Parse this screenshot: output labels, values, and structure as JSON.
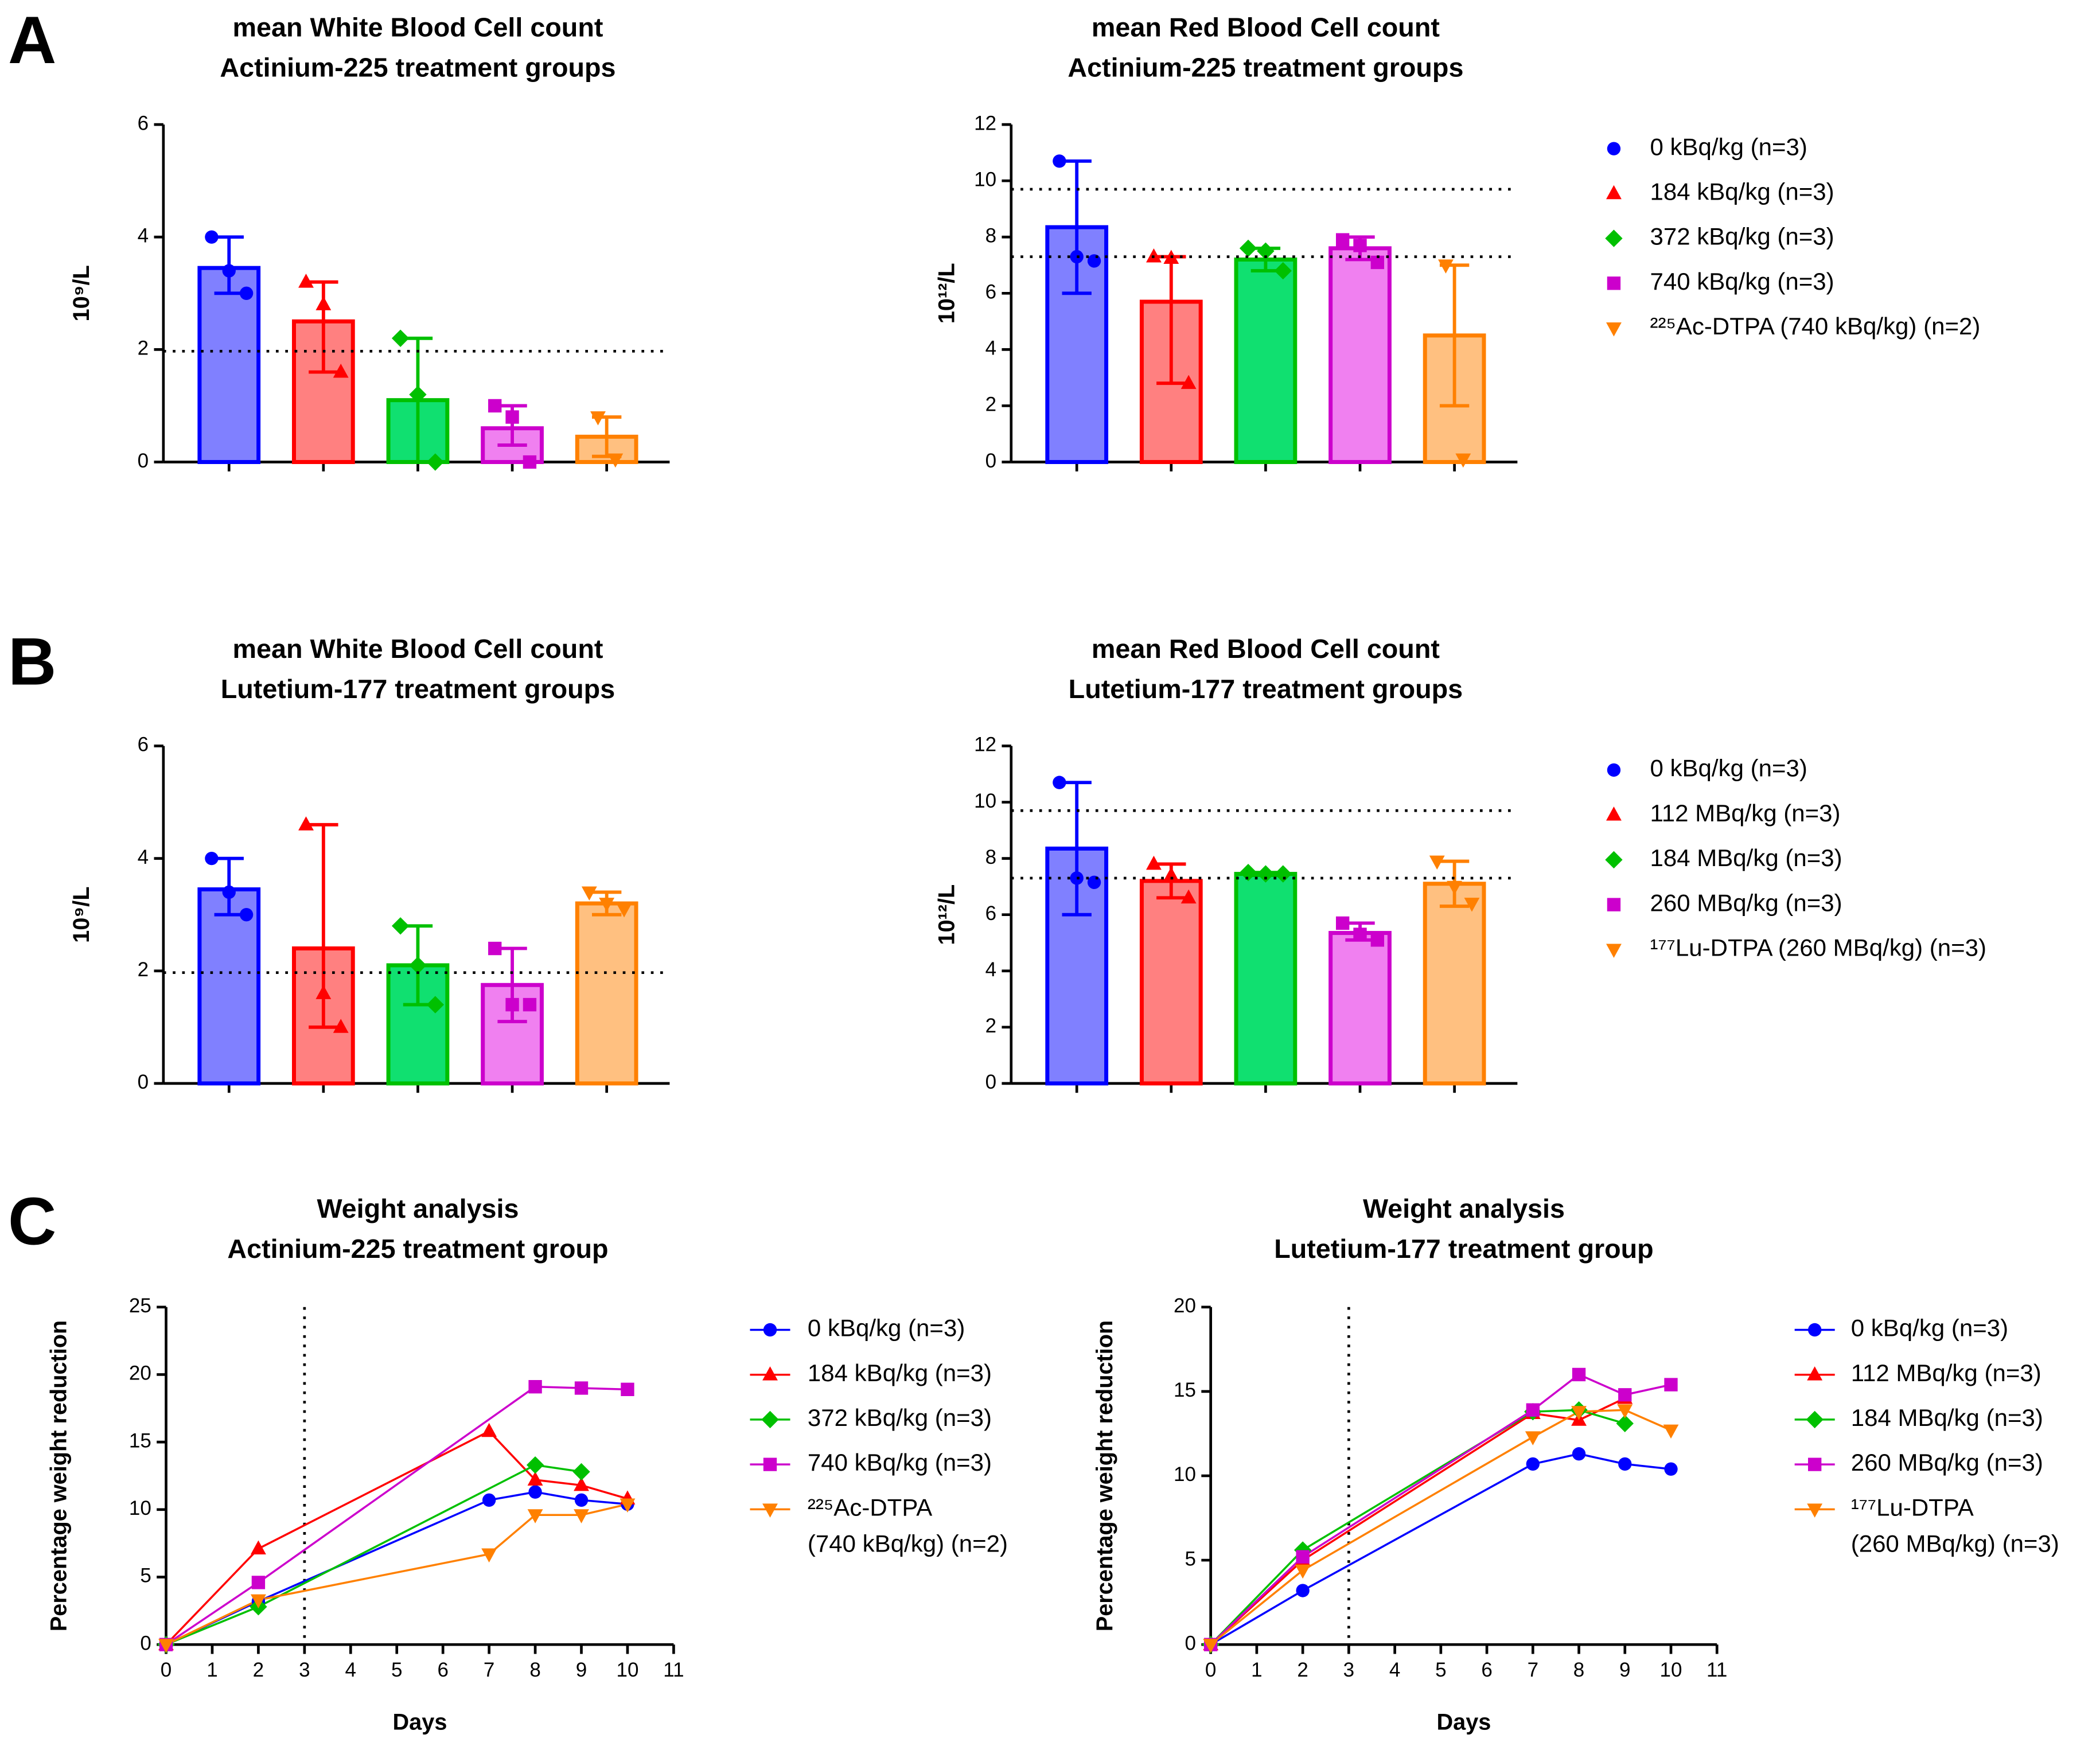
{
  "chart_data": [
    {
      "type": "bar",
      "panel": "A",
      "title": [
        "mean White Blood Cell count",
        "Actinium-225 treatment groups"
      ],
      "ylabel": "10⁹/L",
      "ylim": [
        0,
        6
      ],
      "yticks": [
        0,
        2,
        4,
        6
      ],
      "ref_lines": [
        1.97
      ],
      "series": [
        {
          "color": "#0000ff",
          "fill": "#8080ff",
          "marker": "circle",
          "value": 3.45,
          "error_range": [
            3.0,
            4.0
          ],
          "points": [
            4.0,
            3.4,
            3.0
          ]
        },
        {
          "color": "#ff0000",
          "fill": "#ff8080",
          "marker": "triangle",
          "value": 2.5,
          "error_range": [
            1.6,
            3.2
          ],
          "points": [
            3.2,
            2.8,
            1.6
          ]
        },
        {
          "color": "#00c000",
          "fill": "#10e070",
          "marker": "diamond",
          "value": 1.1,
          "error_range": [
            0.0,
            2.2
          ],
          "points": [
            2.2,
            1.2,
            0.0
          ]
        },
        {
          "color": "#cc00cc",
          "fill": "#f080f0",
          "marker": "square",
          "value": 0.6,
          "error_range": [
            0.3,
            1.0
          ],
          "points": [
            1.0,
            0.8,
            0.0
          ]
        },
        {
          "color": "#ff8000",
          "fill": "#ffc080",
          "marker": "triangle-down",
          "value": 0.45,
          "error_range": [
            0.1,
            0.8
          ],
          "points": [
            0.8,
            0.05
          ]
        }
      ]
    },
    {
      "type": "bar",
      "title": [
        "mean Red Blood Cell count",
        "Actinium-225 treatment groups"
      ],
      "ylabel": "10¹²/L",
      "ylim": [
        0,
        12
      ],
      "yticks": [
        0,
        2,
        4,
        6,
        8,
        10,
        12
      ],
      "ref_lines": [
        9.7,
        7.3
      ],
      "series": [
        {
          "name": "0 kBq/kg (n=3)",
          "color": "#0000ff",
          "fill": "#8080ff",
          "marker": "circle",
          "value": 8.35,
          "error_range": [
            6.0,
            10.7
          ],
          "points": [
            10.7,
            7.3,
            7.15
          ]
        },
        {
          "name": "184 kBq/kg (n=3)",
          "color": "#ff0000",
          "fill": "#ff8080",
          "marker": "triangle",
          "value": 5.7,
          "error_range": [
            2.8,
            7.3
          ],
          "points": [
            7.3,
            7.25,
            2.8
          ]
        },
        {
          "name": "372 kBq/kg (n=3)",
          "color": "#00c000",
          "fill": "#10e070",
          "marker": "diamond",
          "value": 7.2,
          "error_range": [
            6.8,
            7.6
          ],
          "points": [
            7.6,
            7.5,
            6.8
          ]
        },
        {
          "name": "740 kBq/kg (n=3)",
          "color": "#cc00cc",
          "fill": "#f080f0",
          "marker": "square",
          "value": 7.6,
          "error_range": [
            7.2,
            8.0
          ],
          "points": [
            7.9,
            7.7,
            7.1
          ]
        },
        {
          "name": "²²⁵Ac-DTPA (740 kBq/kg) (n=2)",
          "color": "#ff8000",
          "fill": "#ffc080",
          "marker": "triangle-down",
          "value": 4.5,
          "error_range": [
            2.0,
            7.0
          ],
          "points": [
            7.0,
            0.1
          ]
        }
      ]
    },
    {
      "type": "bar",
      "panel": "B",
      "title": [
        "mean White Blood Cell count",
        "Lutetium-177 treatment groups"
      ],
      "ylabel": "10⁹/L",
      "ylim": [
        0,
        6
      ],
      "yticks": [
        0,
        2,
        4,
        6
      ],
      "ref_lines": [
        1.97
      ],
      "series": [
        {
          "color": "#0000ff",
          "fill": "#8080ff",
          "marker": "circle",
          "value": 3.45,
          "error_range": [
            3.0,
            4.0
          ],
          "points": [
            4.0,
            3.4,
            3.0
          ]
        },
        {
          "color": "#ff0000",
          "fill": "#ff8080",
          "marker": "triangle",
          "value": 2.4,
          "error_range": [
            1.0,
            4.6
          ],
          "points": [
            4.6,
            1.6,
            1.0
          ]
        },
        {
          "color": "#00c000",
          "fill": "#10e070",
          "marker": "diamond",
          "value": 2.1,
          "error_range": [
            1.4,
            2.8
          ],
          "points": [
            2.8,
            2.1,
            1.4
          ]
        },
        {
          "color": "#cc00cc",
          "fill": "#f080f0",
          "marker": "square",
          "value": 1.75,
          "error_range": [
            1.1,
            2.4
          ],
          "points": [
            2.4,
            1.4,
            1.4
          ]
        },
        {
          "color": "#ff8000",
          "fill": "#ffc080",
          "marker": "triangle-down",
          "value": 3.2,
          "error_range": [
            3.0,
            3.4
          ],
          "points": [
            3.4,
            3.2,
            3.1
          ]
        }
      ]
    },
    {
      "type": "bar",
      "title": [
        "mean Red Blood Cell count",
        "Lutetium-177 treatment groups"
      ],
      "ylabel": "10¹²/L",
      "ylim": [
        0,
        12
      ],
      "yticks": [
        0,
        2,
        4,
        6,
        8,
        10,
        12
      ],
      "ref_lines": [
        9.7,
        7.3
      ],
      "series": [
        {
          "name": "0 kBq/kg (n=3)",
          "color": "#0000ff",
          "fill": "#8080ff",
          "marker": "circle",
          "value": 8.35,
          "error_range": [
            6.0,
            10.7
          ],
          "points": [
            10.7,
            7.3,
            7.15
          ]
        },
        {
          "name": "112 MBq/kg (n=3)",
          "color": "#ff0000",
          "fill": "#ff8080",
          "marker": "triangle",
          "value": 7.2,
          "error_range": [
            6.6,
            7.8
          ],
          "points": [
            7.8,
            7.4,
            6.6
          ]
        },
        {
          "name": "184 MBq/kg (n=3)",
          "color": "#00c000",
          "fill": "#10e070",
          "marker": "diamond",
          "value": 7.45,
          "error_range": [
            7.4,
            7.5
          ],
          "points": [
            7.5,
            7.45,
            7.45
          ]
        },
        {
          "name": "260 MBq/kg (n=3)",
          "color": "#cc00cc",
          "fill": "#f080f0",
          "marker": "square",
          "value": 5.35,
          "error_range": [
            5.1,
            5.7
          ],
          "points": [
            5.7,
            5.3,
            5.1
          ]
        },
        {
          "name": "¹⁷⁷Lu-DTPA (260 MBq/kg) (n=3)",
          "color": "#ff8000",
          "fill": "#ffc080",
          "marker": "triangle-down",
          "value": 7.1,
          "error_range": [
            6.3,
            7.9
          ],
          "points": [
            7.9,
            7.0,
            6.4
          ]
        }
      ]
    },
    {
      "type": "line",
      "panel": "C",
      "title": [
        "Weight analysis",
        "Actinium-225 treatment group"
      ],
      "xlabel": "Days",
      "ylabel": "Percentage weight reduction",
      "xlim": [
        0,
        11
      ],
      "xticks": [
        0,
        1,
        2,
        3,
        4,
        5,
        6,
        7,
        8,
        9,
        10,
        11
      ],
      "ylim": [
        0,
        25
      ],
      "yticks": [
        0,
        5,
        10,
        15,
        20,
        25
      ],
      "ref_x": [
        3
      ],
      "series": [
        {
          "name": [
            "0 kBq/kg (n=3)"
          ],
          "color": "#0000ff",
          "marker": "circle",
          "x": [
            0,
            2,
            7,
            8,
            9,
            10
          ],
          "values": [
            0,
            3.2,
            10.7,
            11.3,
            10.7,
            10.4
          ]
        },
        {
          "name": [
            "184 kBq/kg (n=3)"
          ],
          "color": "#ff0000",
          "marker": "triangle",
          "x": [
            0,
            2,
            7,
            8,
            9,
            10
          ],
          "values": [
            0,
            7.1,
            15.8,
            12.2,
            11.8,
            10.8
          ]
        },
        {
          "name": [
            "372 kBq/kg (n=3)"
          ],
          "color": "#00c000",
          "marker": "diamond",
          "x": [
            0,
            2,
            8,
            9
          ],
          "values": [
            0,
            2.8,
            13.3,
            12.8
          ]
        },
        {
          "name": [
            "740 kBq/kg (n=3)"
          ],
          "color": "#cc00cc",
          "marker": "square",
          "x": [
            0,
            2,
            8,
            9,
            10
          ],
          "values": [
            0,
            4.6,
            19.1,
            19.0,
            18.9
          ]
        },
        {
          "name": [
            "²²⁵Ac-DTPA",
            "(740 kBq/kg) (n=2)"
          ],
          "color": "#ff8000",
          "marker": "triangle-down",
          "x": [
            0,
            2,
            7,
            8,
            9,
            10
          ],
          "values": [
            0,
            3.3,
            6.7,
            9.6,
            9.6,
            10.4
          ]
        }
      ]
    },
    {
      "type": "line",
      "title": [
        "Weight analysis",
        "Lutetium-177 treatment group"
      ],
      "xlabel": "Days",
      "ylabel": "Percentage weight reduction",
      "xlim": [
        0,
        11
      ],
      "xticks": [
        0,
        1,
        2,
        3,
        4,
        5,
        6,
        7,
        8,
        9,
        10,
        11
      ],
      "ylim": [
        0,
        20
      ],
      "yticks": [
        0,
        5,
        10,
        15,
        20
      ],
      "ref_x": [
        3
      ],
      "series": [
        {
          "name": [
            "0 kBq/kg (n=3)"
          ],
          "color": "#0000ff",
          "marker": "circle",
          "x": [
            0,
            2,
            7,
            8,
            9,
            10
          ],
          "values": [
            0,
            3.2,
            10.7,
            11.3,
            10.7,
            10.4
          ]
        },
        {
          "name": [
            "112 MBq/kg (n=3)"
          ],
          "color": "#ff0000",
          "marker": "triangle",
          "x": [
            0,
            2,
            7,
            8,
            9
          ],
          "values": [
            0,
            5.0,
            13.7,
            13.3,
            14.6
          ]
        },
        {
          "name": [
            "184 MBq/kg (n=3)"
          ],
          "color": "#00c000",
          "marker": "diamond",
          "x": [
            0,
            2,
            7,
            8,
            9
          ],
          "values": [
            0,
            5.6,
            13.8,
            13.9,
            13.1
          ]
        },
        {
          "name": [
            "260 MBq/kg (n=3)"
          ],
          "color": "#cc00cc",
          "marker": "square",
          "x": [
            0,
            2,
            7,
            8,
            9,
            10
          ],
          "values": [
            0,
            5.2,
            13.9,
            16.0,
            14.8,
            15.4
          ]
        },
        {
          "name": [
            "¹⁷⁷Lu-DTPA",
            "(260 MBq/kg) (n=3)"
          ],
          "color": "#ff8000",
          "marker": "triangle-down",
          "x": [
            0,
            2,
            7,
            8,
            9,
            10
          ],
          "values": [
            0,
            4.4,
            12.3,
            13.8,
            13.9,
            12.7
          ]
        }
      ]
    }
  ]
}
